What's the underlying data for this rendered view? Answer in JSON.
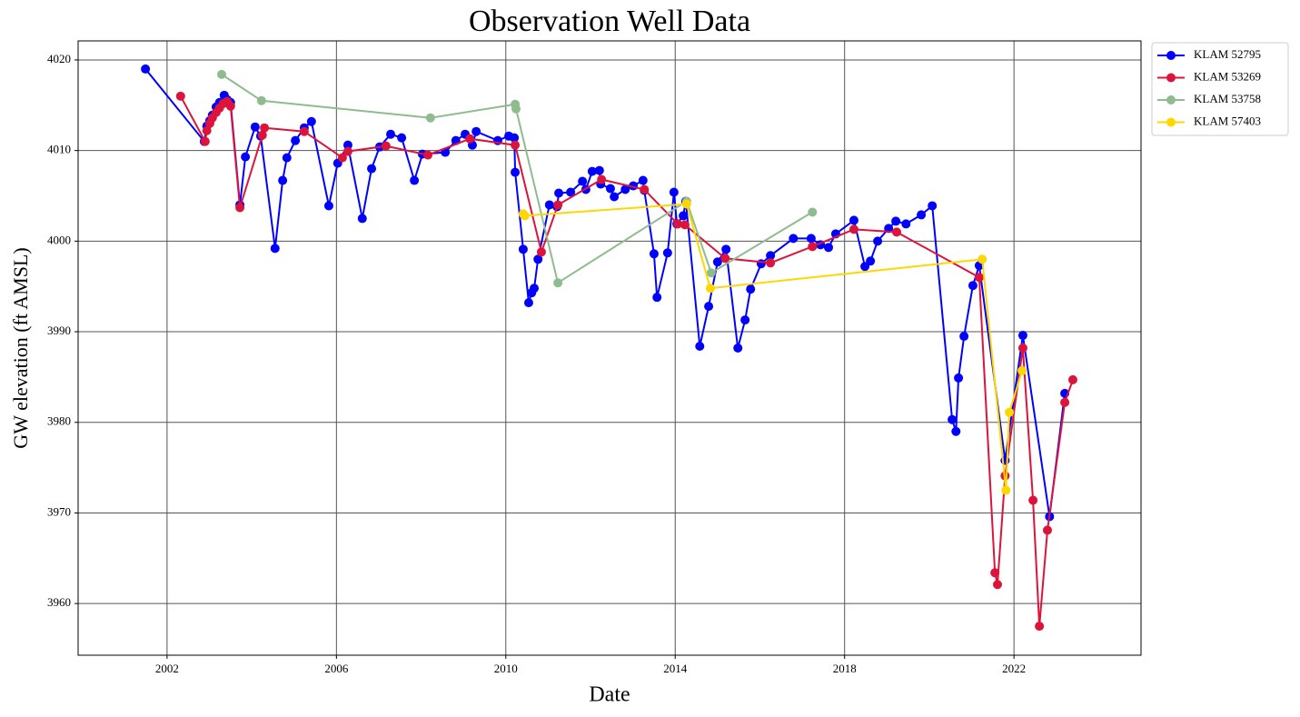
{
  "chart_data": {
    "type": "line",
    "title": "Observation Well Data",
    "x_label": "Date",
    "y_label": "GW elevation (ft AMSL)",
    "xlim": [
      1999.9,
      2025.0
    ],
    "xticks": [
      2002,
      2006,
      2010,
      2014,
      2018,
      2022
    ],
    "ylim": [
      3954.3,
      4022.1
    ],
    "yticks": [
      3960,
      3970,
      3980,
      3990,
      4000,
      4010,
      4020
    ],
    "grid": true,
    "legend": "outside-right",
    "series": [
      {
        "name": "KLAM 52795",
        "color": "#0000ff",
        "x": [
          2001.49,
          2002.88,
          2002.94,
          2003.01,
          2003.07,
          2003.16,
          2003.24,
          2003.35,
          2003.42,
          2003.5,
          2003.72,
          2003.85,
          2004.08,
          2004.21,
          2004.55,
          2004.73,
          2004.83,
          2005.03,
          2005.24,
          2005.41,
          2005.82,
          2006.03,
          2006.27,
          2006.61,
          2006.83,
          2007.02,
          2007.28,
          2007.54,
          2007.84,
          2008.03,
          2008.57,
          2008.82,
          2009.04,
          2009.21,
          2009.3,
          2009.81,
          2010.07,
          2010.2,
          2010.22,
          2010.41,
          2010.54,
          2010.61,
          2010.67,
          2010.76,
          2011.03,
          2011.21,
          2011.25,
          2011.53,
          2011.81,
          2011.89,
          2012.04,
          2012.21,
          2012.24,
          2012.47,
          2012.56,
          2012.82,
          2013.01,
          2013.24,
          2013.27,
          2013.5,
          2013.57,
          2013.82,
          2013.97,
          2014.04,
          2014.19,
          2014.25,
          2014.58,
          2014.79,
          2015.0,
          2015.2,
          2015.48,
          2015.65,
          2015.78,
          2016.03,
          2016.25,
          2016.79,
          2017.21,
          2017.43,
          2017.62,
          2017.79,
          2018.22,
          2018.48,
          2018.61,
          2018.78,
          2019.04,
          2019.21,
          2019.45,
          2019.81,
          2020.07,
          2020.54,
          2020.63,
          2020.69,
          2020.82,
          2021.03,
          2021.18,
          2021.79,
          2022.21,
          2022.84,
          2023.2
        ],
        "values": [
          4019.0,
          4011.0,
          4012.7,
          4013.3,
          4013.9,
          4014.8,
          4015.3,
          4016.1,
          4015.6,
          4015.3,
          4004.0,
          4009.3,
          4012.6,
          4011.6,
          3999.2,
          4006.7,
          4009.2,
          4011.1,
          4012.5,
          4013.2,
          4003.9,
          4008.6,
          4010.6,
          4002.5,
          4008.0,
          4010.4,
          4011.8,
          4011.4,
          4006.7,
          4009.6,
          4009.8,
          4011.1,
          4011.8,
          4010.6,
          4012.1,
          4011.1,
          4011.6,
          4011.4,
          4007.6,
          3999.1,
          3993.2,
          3994.3,
          3994.8,
          3998.0,
          4004.0,
          4003.8,
          4005.3,
          4005.4,
          4006.6,
          4005.7,
          4007.7,
          4007.8,
          4006.3,
          4005.8,
          4004.9,
          4005.7,
          4006.1,
          4006.7,
          4005.6,
          3998.6,
          3993.8,
          3998.7,
          4005.4,
          4001.9,
          4002.8,
          4004.4,
          3988.4,
          3992.8,
          3997.7,
          3999.1,
          3988.2,
          3991.3,
          3994.7,
          3997.5,
          3998.4,
          4000.3,
          4000.3,
          3999.6,
          3999.3,
          4000.8,
          4002.3,
          3997.2,
          3997.8,
          4000.0,
          4001.4,
          4002.2,
          4001.9,
          4002.9,
          4003.9,
          3980.3,
          3979.0,
          3984.9,
          3989.5,
          3995.1,
          3997.3,
          3975.8,
          3989.6,
          3969.6,
          3983.2
        ]
      },
      {
        "name": "KLAM 53269",
        "color": "#dc143c",
        "x": [
          2002.32,
          2002.9,
          2002.94,
          2003.01,
          2003.07,
          2003.16,
          2003.24,
          2003.33,
          2003.42,
          2003.5,
          2003.72,
          2004.25,
          2004.3,
          2005.24,
          2006.14,
          2006.27,
          2007.17,
          2008.16,
          2009.15,
          2010.22,
          2010.84,
          2011.23,
          2012.26,
          2013.27,
          2014.06,
          2014.23,
          2015.18,
          2016.25,
          2017.24,
          2018.22,
          2019.23,
          2021.18,
          2021.55,
          2021.61,
          2021.79,
          2022.21,
          2022.45,
          2022.6,
          2022.79,
          2023.2,
          2023.39
        ],
        "values": [
          4016.0,
          4011.0,
          4012.2,
          4013.0,
          4013.6,
          4014.2,
          4014.7,
          4015.2,
          4015.4,
          4014.9,
          4003.7,
          4011.7,
          4012.5,
          4012.1,
          4009.2,
          4009.9,
          4010.5,
          4009.5,
          4011.3,
          4010.6,
          3998.8,
          4004.0,
          4006.8,
          4005.7,
          4001.9,
          4001.8,
          3998.1,
          3997.6,
          3999.4,
          4001.3,
          4001.0,
          3996.0,
          3963.4,
          3962.1,
          3974.1,
          3988.2,
          3971.4,
          3957.5,
          3968.1,
          3982.2,
          3984.7
        ]
      },
      {
        "name": "KLAM 53758",
        "color": "#8fbc8f",
        "x": [
          2003.29,
          2004.23,
          2008.22,
          2010.22,
          2010.24,
          2011.23,
          2014.27,
          2014.85,
          2017.24
        ],
        "values": [
          4018.4,
          4015.5,
          4013.6,
          4015.1,
          4014.6,
          3995.4,
          4004.4,
          3996.5,
          4003.2
        ]
      },
      {
        "name": "KLAM 57403",
        "color": "#ffd700",
        "x": [
          2010.41,
          2010.45,
          2014.27,
          2014.83,
          2021.25,
          2021.81,
          2021.89,
          2022.19
        ],
        "values": [
          4003.0,
          4002.8,
          4004.1,
          3994.8,
          3998.0,
          3972.5,
          3981.1,
          3985.7
        ]
      }
    ]
  }
}
